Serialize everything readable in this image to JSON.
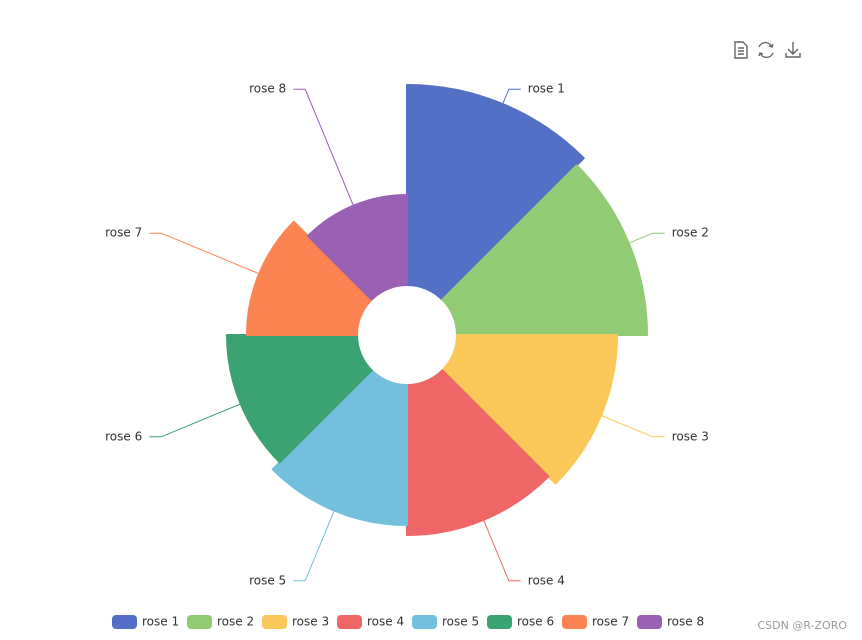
{
  "chart_data": {
    "type": "pie",
    "rose_type": "area",
    "categories": [
      "rose 1",
      "rose 2",
      "rose 3",
      "rose 4",
      "rose 5",
      "rose 6",
      "rose 7",
      "rose 8"
    ],
    "values": [
      40,
      38,
      32,
      30,
      28,
      26,
      22,
      18
    ],
    "colors": [
      "#5470c6",
      "#91cc75",
      "#fac858",
      "#ee6666",
      "#73c0de",
      "#3ba272",
      "#fc8452",
      "#9a60b4"
    ],
    "legend": "bottom"
  },
  "watermark": "CSDN @R-ZORO"
}
